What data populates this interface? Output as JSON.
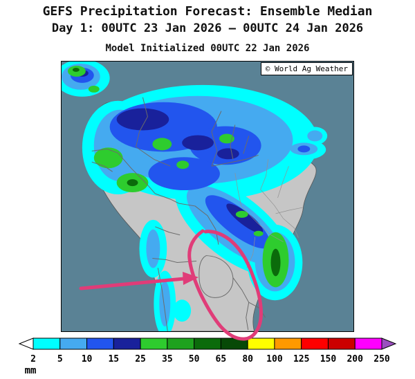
{
  "header": {
    "title": "GEFS Precipitation Forecast: Ensemble Median",
    "subtitle": "Day 1: 00UTC 23 Jan 2026 — 00UTC 24 Jan 2026",
    "init": "Model Initialized 00UTC 22 Jan 2026"
  },
  "map": {
    "copyright": "© World Ag Weather",
    "colors": {
      "ocean": "#5a8295",
      "land": "#c6c6c6",
      "country_border": "#6b6b6b",
      "state_border": "#929292",
      "annotation": "#e03c78"
    }
  },
  "legend": {
    "unit": "mm",
    "boundaries": [
      2,
      5,
      10,
      15,
      25,
      35,
      50,
      65,
      80,
      100,
      125,
      150,
      200,
      250
    ],
    "segment_colors": [
      "#00ffff",
      "#45aaf0",
      "#2255ee",
      "#19219b",
      "#2ecc2e",
      "#1ea21e",
      "#0b6b0b",
      "#074907",
      "#ffff00",
      "#ff9900",
      "#ff0000",
      "#cc0000",
      "#ff00ff"
    ],
    "under_color": "#ffffff",
    "over_color": "#9b4fc0"
  }
}
